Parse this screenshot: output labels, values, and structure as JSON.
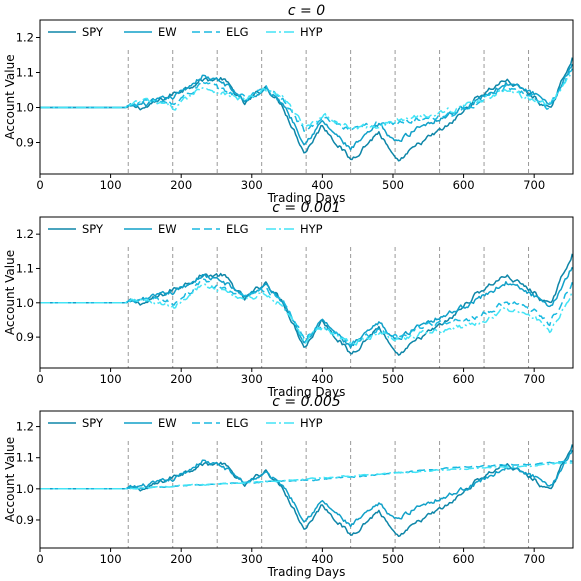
{
  "chart_data": [
    {
      "type": "line",
      "title": "c = 0",
      "xlabel": "Trading Days",
      "ylabel": "Account Value",
      "xlim": [
        0,
        755
      ],
      "ylim": [
        0.81,
        1.25
      ],
      "xticks": [
        0,
        100,
        200,
        300,
        400,
        500,
        600,
        700
      ],
      "yticks": [
        0.9,
        1.0,
        1.1,
        1.2
      ],
      "vlines": [
        125,
        188,
        251,
        314,
        377,
        440,
        503,
        566,
        629,
        692
      ],
      "legend": "top",
      "grid": false,
      "series": [
        {
          "name": "SPY",
          "color": "#0e86a8",
          "dash": "solid",
          "points": [
            [
              0,
              1.0
            ],
            [
              120,
              1.0
            ],
            [
              150,
              1.0
            ],
            [
              190,
              1.04
            ],
            [
              230,
              1.08
            ],
            [
              260,
              1.08
            ],
            [
              290,
              1.01
            ],
            [
              320,
              1.06
            ],
            [
              345,
              1.0
            ],
            [
              375,
              0.87
            ],
            [
              400,
              0.95
            ],
            [
              440,
              0.85
            ],
            [
              480,
              0.93
            ],
            [
              505,
              0.84
            ],
            [
              540,
              0.9
            ],
            [
              580,
              0.95
            ],
            [
              620,
              1.03
            ],
            [
              660,
              1.08
            ],
            [
              700,
              1.03
            ],
            [
              722,
              0.99
            ],
            [
              755,
              1.15
            ]
          ]
        },
        {
          "name": "EW",
          "color": "#11a0c8",
          "dash": "solid",
          "points": [
            [
              0,
              1.0
            ],
            [
              120,
              1.0
            ],
            [
              150,
              1.01
            ],
            [
              190,
              1.03
            ],
            [
              230,
              1.09
            ],
            [
              260,
              1.07
            ],
            [
              290,
              1.02
            ],
            [
              320,
              1.05
            ],
            [
              345,
              1.01
            ],
            [
              375,
              0.9
            ],
            [
              400,
              0.96
            ],
            [
              440,
              0.88
            ],
            [
              480,
              0.95
            ],
            [
              505,
              0.9
            ],
            [
              540,
              0.95
            ],
            [
              580,
              0.98
            ],
            [
              620,
              1.02
            ],
            [
              660,
              1.07
            ],
            [
              700,
              1.04
            ],
            [
              722,
              1.0
            ],
            [
              755,
              1.13
            ]
          ]
        },
        {
          "name": "ELG",
          "color": "#1ab9e0",
          "dash": "8,4",
          "points": [
            [
              0,
              1.0
            ],
            [
              120,
              1.0
            ],
            [
              150,
              1.02
            ],
            [
              190,
              1.01
            ],
            [
              230,
              1.07
            ],
            [
              260,
              1.05
            ],
            [
              290,
              1.03
            ],
            [
              320,
              1.06
            ],
            [
              345,
              1.02
            ],
            [
              375,
              0.93
            ],
            [
              400,
              0.97
            ],
            [
              440,
              0.93
            ],
            [
              480,
              0.96
            ],
            [
              505,
              0.95
            ],
            [
              540,
              0.97
            ],
            [
              580,
              0.98
            ],
            [
              620,
              1.01
            ],
            [
              660,
              1.06
            ],
            [
              700,
              1.03
            ],
            [
              722,
              1.0
            ],
            [
              755,
              1.12
            ]
          ]
        },
        {
          "name": "HYP",
          "color": "#44e4f6",
          "dash": "10,3,2,3",
          "points": [
            [
              0,
              1.0
            ],
            [
              120,
              1.0
            ],
            [
              150,
              1.02
            ],
            [
              190,
              1.0
            ],
            [
              230,
              1.06
            ],
            [
              260,
              1.04
            ],
            [
              290,
              1.02
            ],
            [
              320,
              1.05
            ],
            [
              345,
              1.03
            ],
            [
              375,
              0.94
            ],
            [
              400,
              0.98
            ],
            [
              440,
              0.94
            ],
            [
              480,
              0.95
            ],
            [
              505,
              0.96
            ],
            [
              540,
              0.98
            ],
            [
              580,
              0.99
            ],
            [
              620,
              1.02
            ],
            [
              660,
              1.05
            ],
            [
              700,
              1.02
            ],
            [
              722,
              1.01
            ],
            [
              755,
              1.1
            ]
          ]
        }
      ]
    },
    {
      "type": "line",
      "title": "c = 0.001",
      "xlabel": "Trading Days",
      "ylabel": "Account Value",
      "xlim": [
        0,
        755
      ],
      "ylim": [
        0.81,
        1.25
      ],
      "xticks": [
        0,
        100,
        200,
        300,
        400,
        500,
        600,
        700
      ],
      "yticks": [
        0.9,
        1.0,
        1.1,
        1.2
      ],
      "vlines": [
        125,
        188,
        251,
        314,
        377,
        440,
        503,
        566,
        629,
        692
      ],
      "legend": "top",
      "grid": false,
      "series": [
        {
          "name": "SPY",
          "color": "#0e86a8",
          "dash": "solid",
          "points": [
            [
              0,
              1.0
            ],
            [
              120,
              1.0
            ],
            [
              150,
              1.0
            ],
            [
              190,
              1.04
            ],
            [
              230,
              1.08
            ],
            [
              260,
              1.08
            ],
            [
              290,
              1.01
            ],
            [
              320,
              1.06
            ],
            [
              345,
              1.0
            ],
            [
              375,
              0.87
            ],
            [
              400,
              0.95
            ],
            [
              440,
              0.85
            ],
            [
              480,
              0.93
            ],
            [
              505,
              0.84
            ],
            [
              540,
              0.9
            ],
            [
              580,
              0.95
            ],
            [
              620,
              1.03
            ],
            [
              660,
              1.08
            ],
            [
              700,
              1.03
            ],
            [
              722,
              0.99
            ],
            [
              755,
              1.15
            ]
          ]
        },
        {
          "name": "EW",
          "color": "#11a0c8",
          "dash": "solid",
          "points": [
            [
              0,
              1.0
            ],
            [
              120,
              1.0
            ],
            [
              150,
              1.01
            ],
            [
              190,
              1.03
            ],
            [
              230,
              1.08
            ],
            [
              260,
              1.06
            ],
            [
              290,
              1.02
            ],
            [
              320,
              1.05
            ],
            [
              345,
              1.0
            ],
            [
              375,
              0.89
            ],
            [
              400,
              0.95
            ],
            [
              440,
              0.87
            ],
            [
              480,
              0.94
            ],
            [
              505,
              0.89
            ],
            [
              540,
              0.94
            ],
            [
              580,
              0.97
            ],
            [
              620,
              1.01
            ],
            [
              660,
              1.06
            ],
            [
              700,
              1.02
            ],
            [
              722,
              0.98
            ],
            [
              755,
              1.11
            ]
          ]
        },
        {
          "name": "ELG",
          "color": "#1ab9e0",
          "dash": "8,4",
          "points": [
            [
              0,
              1.0
            ],
            [
              120,
              1.0
            ],
            [
              150,
              1.01
            ],
            [
              190,
              1.0
            ],
            [
              230,
              1.06
            ],
            [
              260,
              1.04
            ],
            [
              290,
              1.02
            ],
            [
              320,
              1.04
            ],
            [
              345,
              1.0
            ],
            [
              375,
              0.9
            ],
            [
              400,
              0.94
            ],
            [
              440,
              0.88
            ],
            [
              480,
              0.92
            ],
            [
              505,
              0.9
            ],
            [
              540,
              0.93
            ],
            [
              580,
              0.94
            ],
            [
              620,
              0.96
            ],
            [
              660,
              1.0
            ],
            [
              700,
              0.98
            ],
            [
              722,
              0.94
            ],
            [
              755,
              1.06
            ]
          ]
        },
        {
          "name": "HYP",
          "color": "#44e4f6",
          "dash": "10,3,2,3",
          "points": [
            [
              0,
              1.0
            ],
            [
              120,
              1.0
            ],
            [
              150,
              1.01
            ],
            [
              190,
              0.99
            ],
            [
              230,
              1.05
            ],
            [
              260,
              1.03
            ],
            [
              290,
              1.01
            ],
            [
              320,
              1.03
            ],
            [
              345,
              0.99
            ],
            [
              375,
              0.89
            ],
            [
              400,
              0.93
            ],
            [
              440,
              0.88
            ],
            [
              480,
              0.91
            ],
            [
              505,
              0.89
            ],
            [
              540,
              0.91
            ],
            [
              580,
              0.92
            ],
            [
              620,
              0.94
            ],
            [
              660,
              0.98
            ],
            [
              700,
              0.96
            ],
            [
              722,
              0.91
            ],
            [
              755,
              1.04
            ]
          ]
        }
      ]
    },
    {
      "type": "line",
      "title": "c = 0.005",
      "xlabel": "Trading Days",
      "ylabel": "Account Value",
      "xlim": [
        0,
        755
      ],
      "ylim": [
        0.81,
        1.25
      ],
      "xticks": [
        0,
        100,
        200,
        300,
        400,
        500,
        600,
        700
      ],
      "yticks": [
        0.9,
        1.0,
        1.1,
        1.2
      ],
      "vlines": [
        125,
        188,
        251,
        314,
        377,
        440,
        503,
        566,
        629,
        692
      ],
      "legend": "top",
      "grid": false,
      "series": [
        {
          "name": "SPY",
          "color": "#0e86a8",
          "dash": "solid",
          "points": [
            [
              0,
              1.0
            ],
            [
              120,
              1.0
            ],
            [
              150,
              1.0
            ],
            [
              190,
              1.04
            ],
            [
              230,
              1.08
            ],
            [
              260,
              1.08
            ],
            [
              290,
              1.01
            ],
            [
              320,
              1.06
            ],
            [
              345,
              1.0
            ],
            [
              375,
              0.87
            ],
            [
              400,
              0.95
            ],
            [
              440,
              0.85
            ],
            [
              480,
              0.93
            ],
            [
              505,
              0.84
            ],
            [
              540,
              0.9
            ],
            [
              580,
              0.95
            ],
            [
              620,
              1.03
            ],
            [
              660,
              1.08
            ],
            [
              700,
              1.03
            ],
            [
              722,
              0.99
            ],
            [
              755,
              1.15
            ]
          ]
        },
        {
          "name": "EW",
          "color": "#11a0c8",
          "dash": "solid",
          "points": [
            [
              0,
              1.0
            ],
            [
              120,
              1.0
            ],
            [
              150,
              1.01
            ],
            [
              190,
              1.03
            ],
            [
              230,
              1.09
            ],
            [
              260,
              1.07
            ],
            [
              290,
              1.02
            ],
            [
              320,
              1.05
            ],
            [
              345,
              1.01
            ],
            [
              375,
              0.9
            ],
            [
              400,
              0.96
            ],
            [
              440,
              0.88
            ],
            [
              480,
              0.95
            ],
            [
              505,
              0.9
            ],
            [
              540,
              0.95
            ],
            [
              580,
              0.98
            ],
            [
              620,
              1.02
            ],
            [
              660,
              1.07
            ],
            [
              700,
              1.04
            ],
            [
              722,
              1.0
            ],
            [
              755,
              1.13
            ]
          ]
        },
        {
          "name": "ELG",
          "color": "#1ab9e0",
          "dash": "8,4",
          "points": [
            [
              0,
              1.0
            ],
            [
              120,
              1.0
            ],
            [
              200,
              1.01
            ],
            [
              300,
              1.02
            ],
            [
              400,
              1.03
            ],
            [
              500,
              1.05
            ],
            [
              600,
              1.07
            ],
            [
              700,
              1.08
            ],
            [
              755,
              1.09
            ]
          ]
        },
        {
          "name": "HYP",
          "color": "#44e4f6",
          "dash": "10,3,2,3",
          "points": [
            [
              0,
              1.0
            ],
            [
              120,
              1.0
            ],
            [
              200,
              1.01
            ],
            [
              300,
              1.02
            ],
            [
              400,
              1.035
            ],
            [
              500,
              1.05
            ],
            [
              600,
              1.065
            ],
            [
              700,
              1.075
            ],
            [
              755,
              1.085
            ]
          ]
        }
      ]
    }
  ]
}
